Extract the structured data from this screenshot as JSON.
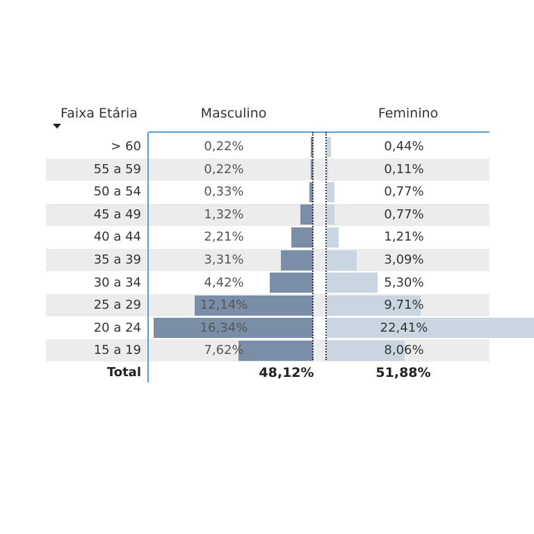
{
  "table": {
    "headers": {
      "age": "Faixa Etária",
      "male": "Masculino",
      "female": "Feminino"
    },
    "sort_indicator": "sort-descending-icon",
    "total_label": "Total",
    "total_male": "48,12%",
    "total_female": "51,88%"
  },
  "chart_data": {
    "type": "bar",
    "orientation": "horizontal",
    "categories": [
      "> 60",
      "55 a 59",
      "50 a 54",
      "45 a 49",
      "40 a 44",
      "35 a 39",
      "30 a 34",
      "25 a 29",
      "20 a 24",
      "15 a 19"
    ],
    "series": [
      {
        "name": "Masculino",
        "values": [
          0.22,
          0.22,
          0.33,
          1.32,
          2.21,
          3.31,
          4.42,
          12.14,
          16.34,
          7.62
        ],
        "labels": [
          "0,22%",
          "0,22%",
          "0,33%",
          "1,32%",
          "2,21%",
          "3,31%",
          "4,42%",
          "12,14%",
          "16,34%",
          "7,62%"
        ],
        "color": "#7b8ea8"
      },
      {
        "name": "Feminino",
        "values": [
          0.44,
          0.11,
          0.77,
          0.77,
          1.21,
          3.09,
          5.3,
          9.71,
          22.41,
          8.06
        ],
        "labels": [
          "0,44%",
          "0,11%",
          "0,77%",
          "0,77%",
          "1,21%",
          "3,09%",
          "5,30%",
          "9,71%",
          "22,41%",
          "8,06%"
        ],
        "color": "#c9d6e1"
      }
    ],
    "shaded_rows": [
      1,
      3,
      5,
      7,
      9
    ],
    "header_accent": "#5b9bd5"
  }
}
